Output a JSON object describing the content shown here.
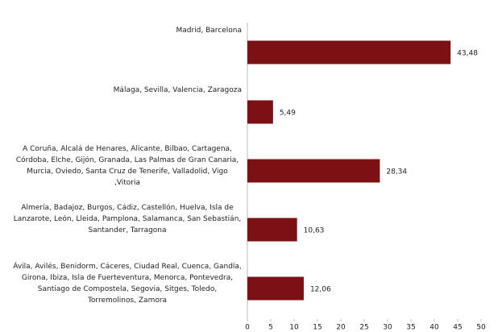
{
  "chart_data": {
    "type": "bar",
    "orientation": "horizontal",
    "categories": [
      "Madrid, Barcelona",
      "Málaga, Sevilla, Valencia, Zaragoza",
      "A Coruña, Alcalá de Henares, Alicante, Bilbao, Cartagena, Córdoba, Elche, Gijón, Granada, Las Palmas de Gran Canaria, Murcia, Oviedo, Santa Cruz de Tenerife, Valladolid, Vigo ,Vitoria",
      "Almería, Badajoz, Burgos, Cádiz, Castellón, Huelva, Isla de Lanzarote, León, Lleida, Pamplona, Salamanca, San Sebastián, Santander, Tarragona",
      "Ávila, Avilés, Benidorm, Cáceres, Ciudad Real, Cuenca, Gandía, Girona, Ibiza, Isla de Fuerteventura, Menorca, Pontevedra, Santiago de Compostela, Segovia, Sitges, Toledo, Torremolinos, Zamora"
    ],
    "values": [
      43.48,
      5.49,
      28.34,
      10.63,
      12.06
    ],
    "value_labels": [
      "43,48",
      "5,49",
      "28,34",
      "10,63",
      "12,06"
    ],
    "color": "#7b1113",
    "xlim": [
      0,
      50
    ],
    "xticks": [
      0,
      5,
      10,
      15,
      20,
      25,
      30,
      35,
      40,
      45,
      50
    ],
    "grid": false
  }
}
